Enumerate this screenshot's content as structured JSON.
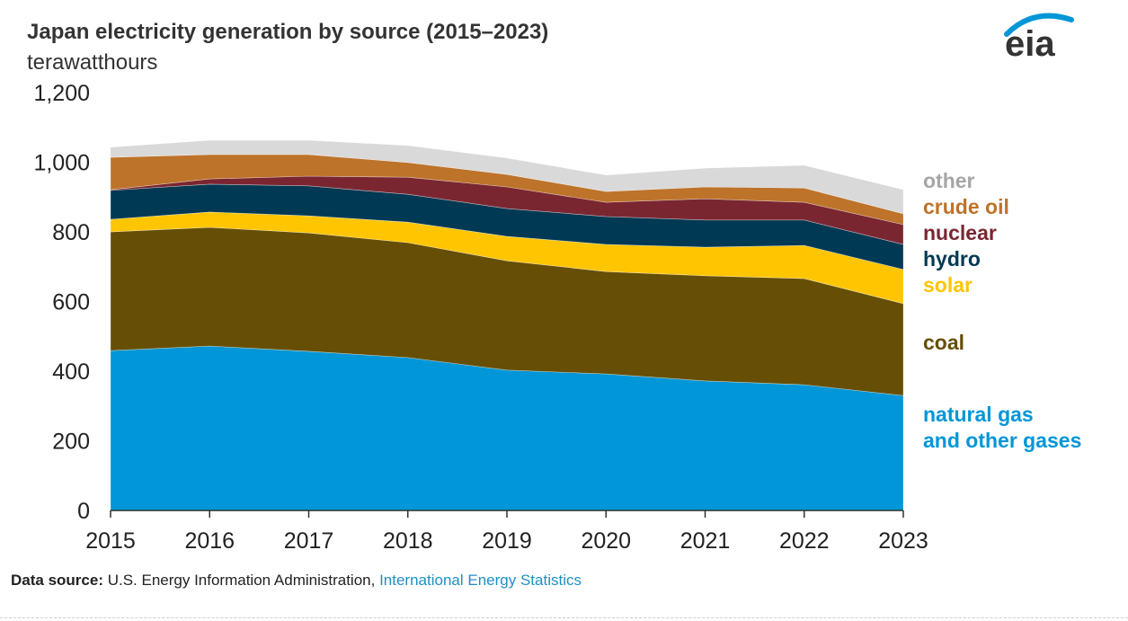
{
  "chart_data": {
    "type": "area",
    "stacked": true,
    "title": "Japan electricity generation by source (2015–2023)",
    "ylabel": "terawatthours",
    "xlabel": "",
    "ylim": [
      0,
      1200
    ],
    "yticks": [
      "0",
      "200",
      "400",
      "600",
      "800",
      "1,000",
      "1,200"
    ],
    "ytick_values": [
      0,
      200,
      400,
      600,
      800,
      1000,
      1200
    ],
    "categories": [
      "2015",
      "2016",
      "2017",
      "2018",
      "2019",
      "2020",
      "2021",
      "2022",
      "2023"
    ],
    "grid": false,
    "legend": "right",
    "series": [
      {
        "name": "natural gas and other gases",
        "label_lines": [
          "natural gas",
          "and other gases"
        ],
        "color": "#0096d7",
        "label_color": "#0096d7",
        "values": [
          459,
          472,
          457,
          439,
          403,
          392,
          372,
          361,
          330
        ]
      },
      {
        "name": "coal",
        "label_lines": [
          "coal"
        ],
        "color": "#664f05",
        "label_color": "#664f05",
        "values": [
          341,
          341,
          340,
          330,
          314,
          294,
          302,
          305,
          264
        ]
      },
      {
        "name": "solar",
        "label_lines": [
          "solar"
        ],
        "color": "#ffc500",
        "label_color": "#ffc500",
        "values": [
          36,
          44,
          49,
          59,
          70,
          78,
          82,
          95,
          98
        ]
      },
      {
        "name": "hydro",
        "label_lines": [
          "hydro"
        ],
        "color": "#003953",
        "label_color": "#003953",
        "values": [
          83,
          80,
          86,
          80,
          80,
          80,
          78,
          73,
          72
        ]
      },
      {
        "name": "nuclear",
        "label_lines": [
          "nuclear"
        ],
        "color": "#7a2631",
        "label_color": "#7a2631",
        "values": [
          2,
          15,
          28,
          49,
          62,
          41,
          61,
          51,
          57
        ]
      },
      {
        "name": "crude oil",
        "label_lines": [
          "crude oil"
        ],
        "color": "#bd732a",
        "label_color": "#bd732a",
        "values": [
          93,
          70,
          62,
          42,
          36,
          31,
          34,
          41,
          31
        ]
      },
      {
        "name": "other",
        "label_lines": [
          "other"
        ],
        "color": "#d9d9d9",
        "label_color": "#a6a6a6",
        "values": [
          29,
          41,
          41,
          49,
          47,
          47,
          54,
          65,
          69
        ]
      }
    ]
  },
  "logo": {
    "text": "eia",
    "color": "#0096d7"
  },
  "footer": {
    "label": "Data source:",
    "text": " U.S. Energy Information Administration, ",
    "link": "International Energy Statistics"
  }
}
